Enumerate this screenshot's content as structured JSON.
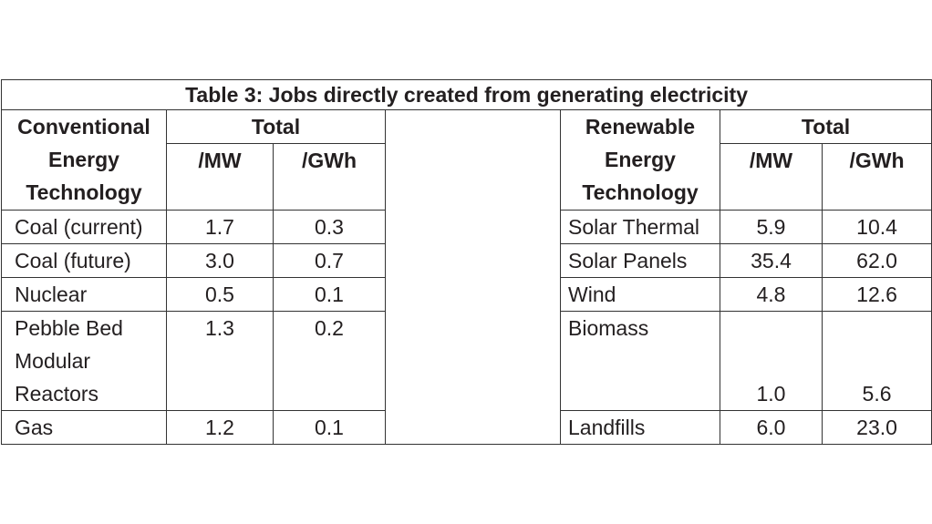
{
  "table": {
    "title": "Table 3: Jobs directly created from generating electricity",
    "conventional_header": [
      "Conventional",
      "Energy",
      "Technology"
    ],
    "renewable_header": [
      "Renewable",
      "Energy",
      "Technology"
    ],
    "total_header": "Total",
    "mw_header": "/MW",
    "gwh_header": "/GWh",
    "conventional_rows": [
      {
        "label": [
          "Coal (current)"
        ],
        "mw": "1.7",
        "gwh": "0.3"
      },
      {
        "label": [
          "Coal (future)"
        ],
        "mw": "3.0",
        "gwh": "0.7"
      },
      {
        "label": [
          "Nuclear"
        ],
        "mw": "0.5",
        "gwh": "0.1"
      },
      {
        "label": [
          "Pebble Bed",
          "Modular",
          "Reactors"
        ],
        "mw": "1.3",
        "gwh": "0.2"
      },
      {
        "label": [
          "Gas"
        ],
        "mw": "1.2",
        "gwh": "0.1"
      }
    ],
    "renewable_rows": [
      {
        "label": "Solar Thermal",
        "mw": "5.9",
        "gwh": "10.4"
      },
      {
        "label": "Solar Panels",
        "mw": "35.4",
        "gwh": "62.0"
      },
      {
        "label": "Wind",
        "mw": "4.8",
        "gwh": "12.6"
      },
      {
        "label": "Biomass",
        "mw": "1.0",
        "gwh": "5.6"
      },
      {
        "label": "Landfills",
        "mw": "6.0",
        "gwh": "23.0"
      }
    ]
  }
}
